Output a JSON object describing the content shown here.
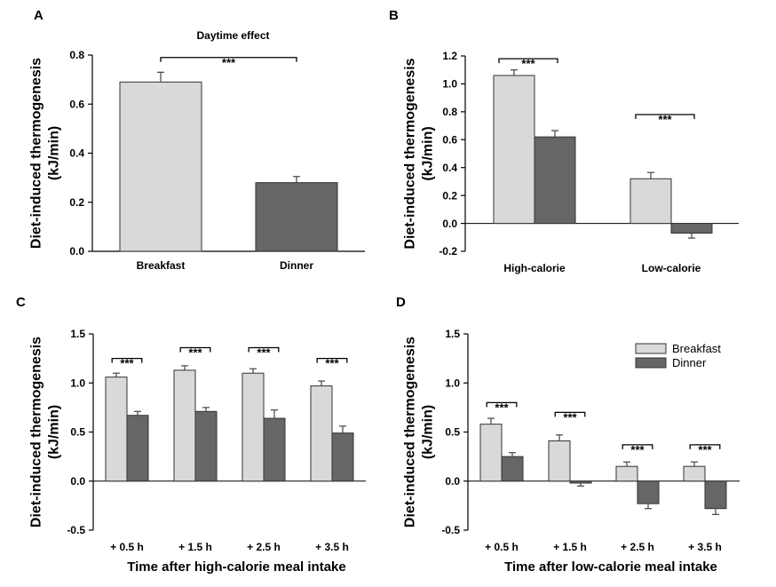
{
  "colors": {
    "breakfast": "#d9d9d9",
    "dinner": "#666666",
    "bar_border": "#333333"
  },
  "legend": {
    "breakfast": "Breakfast",
    "dinner": "Dinner"
  },
  "chart_data": [
    {
      "panel": "A",
      "type": "bar",
      "title": "Daytime effect",
      "ylabel_line1": "Diet-induced thermogenesis",
      "ylabel_line2": "(kJ/min)",
      "xlabel": "",
      "ylim": [
        0,
        0.8
      ],
      "yticks": [
        "0.0",
        "0.2",
        "0.4",
        "0.6",
        "0.8"
      ],
      "ytick_values": [
        0,
        0.2,
        0.4,
        0.6,
        0.8
      ],
      "categories": [
        "Breakfast",
        "Dinner"
      ],
      "series": [
        {
          "name": "Daytime",
          "values": [
            0.69,
            0.28
          ],
          "errors": [
            0.04,
            0.025
          ]
        }
      ],
      "annotations": [
        {
          "text": "***",
          "from": 0,
          "to": 1,
          "level": 0.79
        }
      ]
    },
    {
      "panel": "B",
      "type": "bar",
      "title": "",
      "ylabel_line1": "Diet-induced thermogenesis",
      "ylabel_line2": "(kJ/min)",
      "xlabel": "",
      "ylim": [
        -0.2,
        1.2
      ],
      "yticks": [
        "-0.2",
        "0.0",
        "0.2",
        "0.4",
        "0.6",
        "0.8",
        "1.0",
        "1.2"
      ],
      "ytick_values": [
        -0.2,
        0,
        0.2,
        0.4,
        0.6,
        0.8,
        1.0,
        1.2
      ],
      "categories": [
        "High-calorie",
        "Low-calorie"
      ],
      "series": [
        {
          "name": "Breakfast",
          "values": [
            1.06,
            0.32
          ],
          "errors": [
            0.04,
            0.045
          ]
        },
        {
          "name": "Dinner",
          "values": [
            0.62,
            -0.07
          ],
          "errors": [
            0.045,
            0.035
          ]
        }
      ],
      "annotations": [
        {
          "text": "***",
          "category": 0,
          "level": 1.18
        },
        {
          "text": "***",
          "category": 1,
          "level": 0.78
        }
      ]
    },
    {
      "panel": "C",
      "type": "bar",
      "title": "",
      "ylabel_line1": "Diet-induced thermogenesis",
      "ylabel_line2": "(kJ/min)",
      "xlabel": "Time after high-calorie meal intake",
      "ylim": [
        -0.5,
        1.5
      ],
      "yticks": [
        "-0.5",
        "0.0",
        "0.5",
        "1.0",
        "1.5"
      ],
      "ytick_values": [
        -0.5,
        0,
        0.5,
        1.0,
        1.5
      ],
      "categories": [
        "+ 0.5 h",
        "+ 1.5 h",
        "+ 2.5 h",
        "+ 3.5 h"
      ],
      "series": [
        {
          "name": "Breakfast",
          "values": [
            1.06,
            1.13,
            1.1,
            0.97
          ],
          "errors": [
            0.04,
            0.045,
            0.045,
            0.05
          ]
        },
        {
          "name": "Dinner",
          "values": [
            0.67,
            0.71,
            0.64,
            0.49
          ],
          "errors": [
            0.04,
            0.04,
            0.085,
            0.07
          ]
        }
      ],
      "annotations": [
        {
          "text": "***",
          "category": 0,
          "level": 1.25
        },
        {
          "text": "***",
          "category": 1,
          "level": 1.36
        },
        {
          "text": "***",
          "category": 2,
          "level": 1.36
        },
        {
          "text": "***",
          "category": 3,
          "level": 1.25
        }
      ]
    },
    {
      "panel": "D",
      "type": "bar",
      "title": "",
      "ylabel_line1": "Diet-induced thermogenesis",
      "ylabel_line2": "(kJ/min)",
      "xlabel": "Time after low-calorie meal intake",
      "ylim": [
        -0.5,
        1.5
      ],
      "yticks": [
        "-0.5",
        "0.0",
        "0.5",
        "1.0",
        "1.5"
      ],
      "ytick_values": [
        -0.5,
        0,
        0.5,
        1.0,
        1.5
      ],
      "categories": [
        "+ 0.5 h",
        "+ 1.5 h",
        "+ 2.5 h",
        "+ 3.5 h"
      ],
      "series": [
        {
          "name": "Breakfast",
          "values": [
            0.58,
            0.41,
            0.15,
            0.15
          ],
          "errors": [
            0.06,
            0.06,
            0.045,
            0.045
          ]
        },
        {
          "name": "Dinner",
          "values": [
            0.25,
            -0.02,
            -0.23,
            -0.28
          ],
          "errors": [
            0.04,
            0.03,
            0.05,
            0.06
          ]
        }
      ],
      "annotations": [
        {
          "text": "***",
          "category": 0,
          "level": 0.8
        },
        {
          "text": "***",
          "category": 1,
          "level": 0.7
        },
        {
          "text": "***",
          "category": 2,
          "level": 0.37
        },
        {
          "text": "***",
          "category": 3,
          "level": 0.37
        }
      ],
      "legend_position": "top-right"
    }
  ]
}
